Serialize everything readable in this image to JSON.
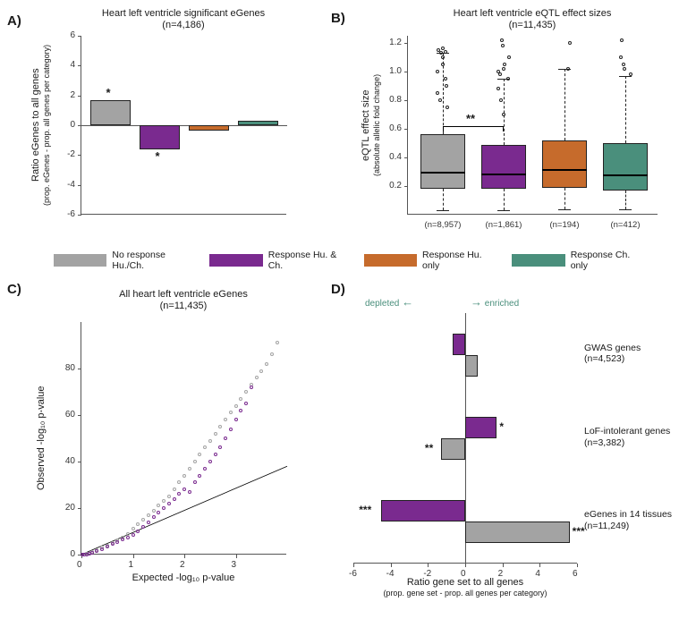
{
  "colors": {
    "no_resp": "#a3a3a3",
    "resp_both": "#7a2a8f",
    "resp_hu": "#c66b2c",
    "resp_ch": "#4a8f7c",
    "axis": "#555555",
    "text": "#1a1a1a",
    "bg": "#ffffff",
    "outline": "#222222"
  },
  "legend": [
    {
      "label": "No response Hu./Ch.",
      "color": "#a3a3a3"
    },
    {
      "label": "Response Hu. & Ch.",
      "color": "#7a2a8f"
    },
    {
      "label": "Response Hu. only",
      "color": "#c66b2c"
    },
    {
      "label": "Response Ch. only",
      "color": "#4a8f7c"
    }
  ],
  "panel_a": {
    "label": "A)",
    "title_line1": "Heart left ventricle significant eGenes",
    "title_line2": "(n=4,186)",
    "ylabel_line1": "Ratio eGenes to all genes",
    "ylabel_line2": "(prop. eGenes - prop. all genes per category)",
    "ylim": [
      -6,
      6
    ],
    "yticks": [
      -6,
      -4,
      -2,
      0,
      2,
      4,
      6
    ],
    "bars": [
      {
        "color": "#a3a3a3",
        "value": 1.7,
        "sig": "*",
        "sig_pos": "above"
      },
      {
        "color": "#7a2a8f",
        "value": -1.6,
        "sig": "*",
        "sig_pos": "below"
      },
      {
        "color": "#c66b2c",
        "value": -0.35
      },
      {
        "color": "#4a8f7c",
        "value": 0.3
      }
    ]
  },
  "panel_b": {
    "label": "B)",
    "title_line1": "Heart left ventricle eQTL effect sizes",
    "title_line2": "(n=11,435)",
    "ylabel_line1": "eQTL effect size",
    "ylabel_line2": "(absolute allelic fold change)",
    "ylim": [
      0,
      1.25
    ],
    "yticks": [
      0.2,
      0.4,
      0.6,
      0.8,
      1.0,
      1.2
    ],
    "boxes": [
      {
        "color": "#a3a3a3",
        "q1": 0.18,
        "median": 0.3,
        "q3": 0.56,
        "wlo": 0.03,
        "whi": 1.13,
        "outliers": [
          1.13,
          1.14,
          1.15,
          1.16,
          0.75,
          0.8,
          0.85,
          0.9,
          0.95,
          1.0,
          1.05,
          1.1
        ],
        "n": "(n=8,957)"
      },
      {
        "color": "#7a2a8f",
        "q1": 0.18,
        "median": 0.29,
        "q3": 0.49,
        "wlo": 0.03,
        "whi": 0.95,
        "outliers": [
          0.95,
          0.98,
          1.0,
          1.02,
          1.05,
          1.1,
          1.18,
          1.22,
          0.7,
          0.8,
          0.88
        ],
        "n": "(n=1,861)"
      },
      {
        "color": "#c66b2c",
        "q1": 0.19,
        "median": 0.32,
        "q3": 0.52,
        "wlo": 0.04,
        "whi": 1.02,
        "outliers": [
          1.02,
          1.2
        ],
        "n": "(n=194)"
      },
      {
        "color": "#4a8f7c",
        "q1": 0.17,
        "median": 0.28,
        "q3": 0.5,
        "wlo": 0.04,
        "whi": 0.97,
        "outliers": [
          0.98,
          1.02,
          1.05,
          1.1,
          1.22
        ],
        "n": "(n=412)"
      }
    ],
    "sig_marker": "**"
  },
  "panel_c": {
    "label": "C)",
    "title_line1": "All heart left ventricle eGenes",
    "title_line2": "(n=11,435)",
    "xlabel": "Expected -log₁₀ p-value",
    "ylabel": "Observed -log₁₀ p-value",
    "xlim": [
      0,
      4
    ],
    "ylim": [
      0,
      100
    ],
    "xticks": [
      0,
      1,
      2,
      3
    ],
    "yticks": [
      0,
      20,
      40,
      60,
      80
    ],
    "diag_line": {
      "x0": 0,
      "y0": 0,
      "x1": 4,
      "y1": 38
    },
    "series": [
      {
        "color": "#a3a3a3",
        "points": [
          [
            0.02,
            0.02
          ],
          [
            0.05,
            0.05
          ],
          [
            0.1,
            0.2
          ],
          [
            0.15,
            0.5
          ],
          [
            0.2,
            1
          ],
          [
            0.3,
            2
          ],
          [
            0.4,
            3
          ],
          [
            0.5,
            4
          ],
          [
            0.6,
            5
          ],
          [
            0.7,
            6
          ],
          [
            0.8,
            7.5
          ],
          [
            0.9,
            9
          ],
          [
            1.0,
            11
          ],
          [
            1.1,
            13
          ],
          [
            1.2,
            15
          ],
          [
            1.3,
            17
          ],
          [
            1.4,
            19
          ],
          [
            1.5,
            21
          ],
          [
            1.6,
            23
          ],
          [
            1.7,
            25
          ],
          [
            1.8,
            28
          ],
          [
            1.9,
            31
          ],
          [
            2.0,
            34
          ],
          [
            2.1,
            37
          ],
          [
            2.2,
            40
          ],
          [
            2.3,
            43
          ],
          [
            2.4,
            46
          ],
          [
            2.5,
            49
          ],
          [
            2.6,
            52
          ],
          [
            2.7,
            55
          ],
          [
            2.8,
            58
          ],
          [
            2.9,
            61
          ],
          [
            3.0,
            64
          ],
          [
            3.1,
            67
          ],
          [
            3.2,
            70
          ],
          [
            3.3,
            73
          ],
          [
            3.4,
            76
          ],
          [
            3.5,
            79
          ],
          [
            3.6,
            82
          ],
          [
            3.7,
            86
          ],
          [
            3.8,
            91
          ]
        ]
      },
      {
        "color": "#7a2a8f",
        "points": [
          [
            0.02,
            0.02
          ],
          [
            0.05,
            0.05
          ],
          [
            0.1,
            0.15
          ],
          [
            0.15,
            0.3
          ],
          [
            0.2,
            0.6
          ],
          [
            0.3,
            1.5
          ],
          [
            0.4,
            2.5
          ],
          [
            0.5,
            3.5
          ],
          [
            0.6,
            4.5
          ],
          [
            0.7,
            5.5
          ],
          [
            0.8,
            6.5
          ],
          [
            0.9,
            7.5
          ],
          [
            1.0,
            8.5
          ],
          [
            1.1,
            10
          ],
          [
            1.2,
            12
          ],
          [
            1.3,
            14
          ],
          [
            1.4,
            16
          ],
          [
            1.5,
            18
          ],
          [
            1.6,
            20
          ],
          [
            1.7,
            22
          ],
          [
            1.8,
            24
          ],
          [
            1.9,
            26
          ],
          [
            2.0,
            28
          ],
          [
            2.1,
            27
          ],
          [
            2.2,
            31
          ],
          [
            2.3,
            34
          ],
          [
            2.4,
            37
          ],
          [
            2.5,
            40
          ],
          [
            2.6,
            43
          ],
          [
            2.7,
            46
          ],
          [
            2.8,
            50
          ],
          [
            2.9,
            54
          ],
          [
            3.0,
            58
          ],
          [
            3.1,
            62
          ],
          [
            3.2,
            65
          ],
          [
            3.3,
            72
          ]
        ]
      }
    ]
  },
  "panel_d": {
    "label": "D)",
    "xlabel_line1": "Ratio gene set to all genes",
    "xlabel_line2": "(prop. gene set - prop. all genes per category)",
    "depleted_label": "depleted",
    "enriched_label": "enriched",
    "xlim": [
      -6,
      6
    ],
    "xticks": [
      -6,
      -4,
      -2,
      0,
      2,
      4,
      6
    ],
    "groups": [
      {
        "label_line1": "GWAS genes",
        "label_line2": "(n=4,523)",
        "bars": [
          {
            "color": "#7a2a8f",
            "value": -0.65
          },
          {
            "color": "#a3a3a3",
            "value": 0.65
          }
        ]
      },
      {
        "label_line1": "LoF-intolerant genes",
        "label_line2": "(n=3,382)",
        "bars": [
          {
            "color": "#7a2a8f",
            "value": 1.7,
            "sig": "*"
          },
          {
            "color": "#a3a3a3",
            "value": -1.3,
            "sig": "**"
          }
        ]
      },
      {
        "label_line1": "eGenes in 14 tissues",
        "label_line2": "(n=11,249)",
        "bars": [
          {
            "color": "#7a2a8f",
            "value": -4.5,
            "sig": "***"
          },
          {
            "color": "#a3a3a3",
            "value": 5.6,
            "sig": "***"
          }
        ]
      }
    ]
  }
}
